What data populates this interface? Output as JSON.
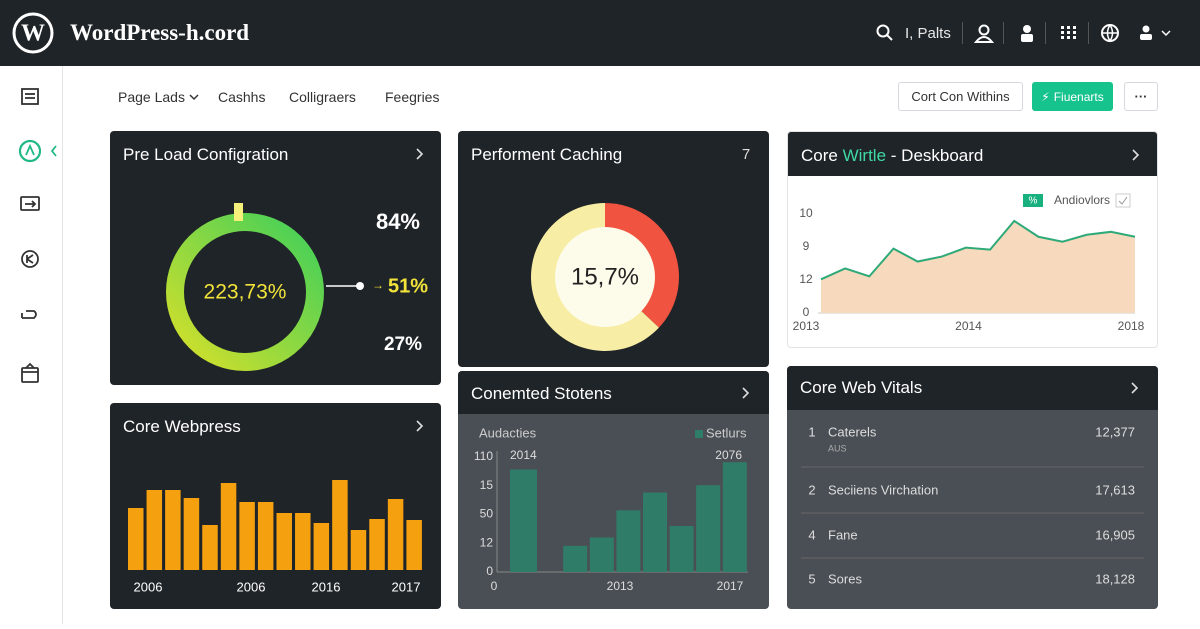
{
  "header": {
    "brand": "WordPress-h.cord",
    "search": "I, Palts"
  },
  "tabs": [
    "Page Lads",
    "Cashhs",
    "Colligraers",
    "Feegries"
  ],
  "actions": {
    "secondary": "Cort Con Withins",
    "primary": "Fiuenarts"
  },
  "cards": [
    {
      "title": "Pre Load Configration",
      "type": "donut",
      "center_label": "223,73%",
      "side_labels": [
        "84%",
        "51%",
        "27%"
      ]
    },
    {
      "title": "Performent Caching",
      "badge": "7",
      "type": "pie",
      "center_label": "15,7%",
      "values": [
        37,
        63
      ],
      "colors": [
        "#f0533f",
        "#f7eda4"
      ]
    },
    {
      "title_start": "Core",
      "title_highlight": "Wirtle",
      "title_end": "- Deskboard",
      "type": "area",
      "legend": "Andiovlors",
      "legend_badge": "%",
      "color": "#f7d9bd",
      "line_color": "#2eaa78",
      "ylim": [
        0,
        10
      ],
      "y_labels": [
        "10",
        "9",
        "12",
        "0"
      ],
      "x_labels": [
        "2013",
        "2014",
        "2018"
      ],
      "values": [
        3.4,
        4.5,
        3.7,
        6.5,
        5.2,
        5.7,
        6.6,
        6.4,
        9.3,
        7.7,
        7.2,
        7.9,
        8.2,
        7.7
      ]
    },
    {
      "title": "Core Webpress",
      "type": "bar",
      "color": "#f5a00e",
      "ylim": [
        0,
        100
      ],
      "x_labels": [
        "2006",
        "2006",
        "2016",
        "2017"
      ],
      "values": [
        62,
        80,
        80,
        72,
        45,
        87,
        68,
        68,
        57,
        57,
        47,
        90,
        40,
        51,
        71,
        50
      ]
    },
    {
      "title": "Conemted Stotens",
      "type": "bar",
      "color": "#2f7d68",
      "ylim": [
        0,
        110
      ],
      "legend_left": "Audacties",
      "legend": "Setlurs",
      "top_labels": [
        "2014",
        "2076"
      ],
      "y_labels": [
        "110",
        "15",
        "50",
        "12",
        "0"
      ],
      "x_labels": [
        "0",
        "2013",
        "2017"
      ],
      "values": [
        98,
        null,
        25,
        33,
        59,
        76,
        44,
        83,
        105
      ]
    },
    {
      "title": "Core Web Vitals",
      "type": "table",
      "rows": [
        [
          "1",
          "Caterels",
          "12,377",
          "AUS"
        ],
        [
          "2",
          "Seciiens Virchation",
          "17,613"
        ],
        [
          "4",
          "Fane",
          "16,905"
        ],
        [
          "5",
          "Sores",
          "18,128"
        ]
      ]
    }
  ]
}
